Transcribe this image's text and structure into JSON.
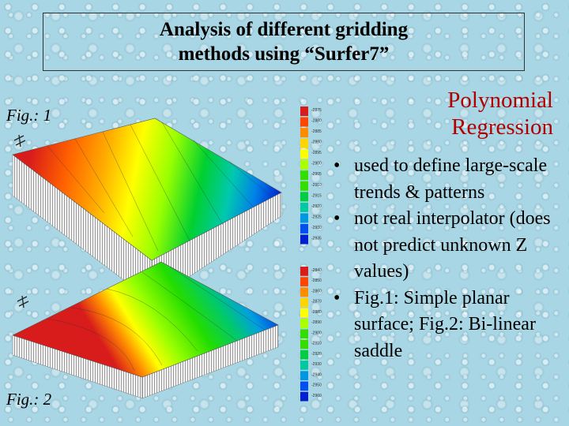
{
  "slide": {
    "title": "Analysis of different gridding\nmethods using “Surfer7”",
    "fig1_label": "Fig.: 1",
    "fig2_label": "Fig.: 2",
    "heading": "Polynomial\nRegression",
    "bullets": [
      "used to define large-scale trends & patterns",
      "not real interpolator (does not predict unknown Z values)",
      "Fig.1: Simple planar surface; Fig.2: Bi-linear saddle"
    ]
  },
  "colors": {
    "heading": "#b00000",
    "palette": [
      "#d81b1b",
      "#ff4500",
      "#ff8c00",
      "#ffd400",
      "#ffff00",
      "#aaff00",
      "#33dd00",
      "#00cc44",
      "#00c8a0",
      "#0096e0",
      "#0050f0",
      "#0020d0"
    ]
  },
  "fig1": {
    "legend_labels": [
      "-2875",
      "-2880",
      "-2885",
      "-2890",
      "-2895",
      "-2900",
      "-2905",
      "-2910",
      "-2915",
      "-2920",
      "-2925",
      "-2930",
      "-2935"
    ]
  },
  "fig2": {
    "legend_labels": [
      "-2840",
      "-2850",
      "-2860",
      "-2870",
      "-2880",
      "-2890",
      "-2900",
      "-2910",
      "-2920",
      "-2930",
      "-2940",
      "-2950",
      "-2960"
    ]
  }
}
